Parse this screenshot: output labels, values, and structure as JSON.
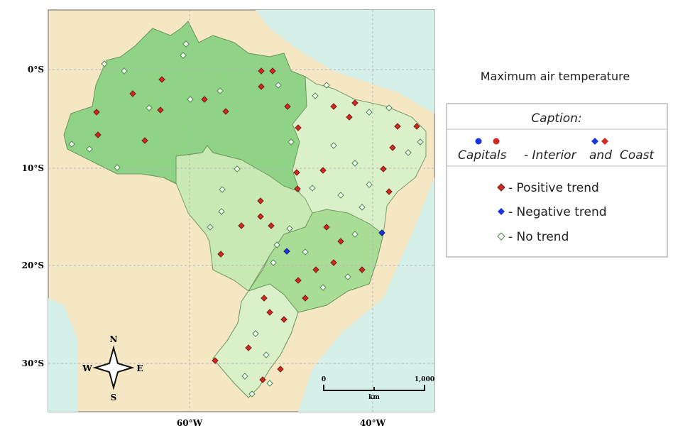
{
  "map": {
    "lat_labels": [
      "0°S",
      "10°S",
      "20°S",
      "30°S"
    ],
    "lon_labels": [
      "60°W",
      "40°W"
    ],
    "compass": {
      "n": "N",
      "s": "S",
      "w": "W",
      "e": "E"
    },
    "scale": {
      "start": "0",
      "unit": "km",
      "end": "1,000"
    }
  },
  "legend": {
    "title": "Maximum air temperature",
    "caption": "Caption:",
    "capitals": "Capitals",
    "interior": "- Interior",
    "and": "and",
    "coast": "Coast",
    "items": [
      "- Positive trend",
      "- Negative trend",
      "- No trend"
    ]
  }
}
